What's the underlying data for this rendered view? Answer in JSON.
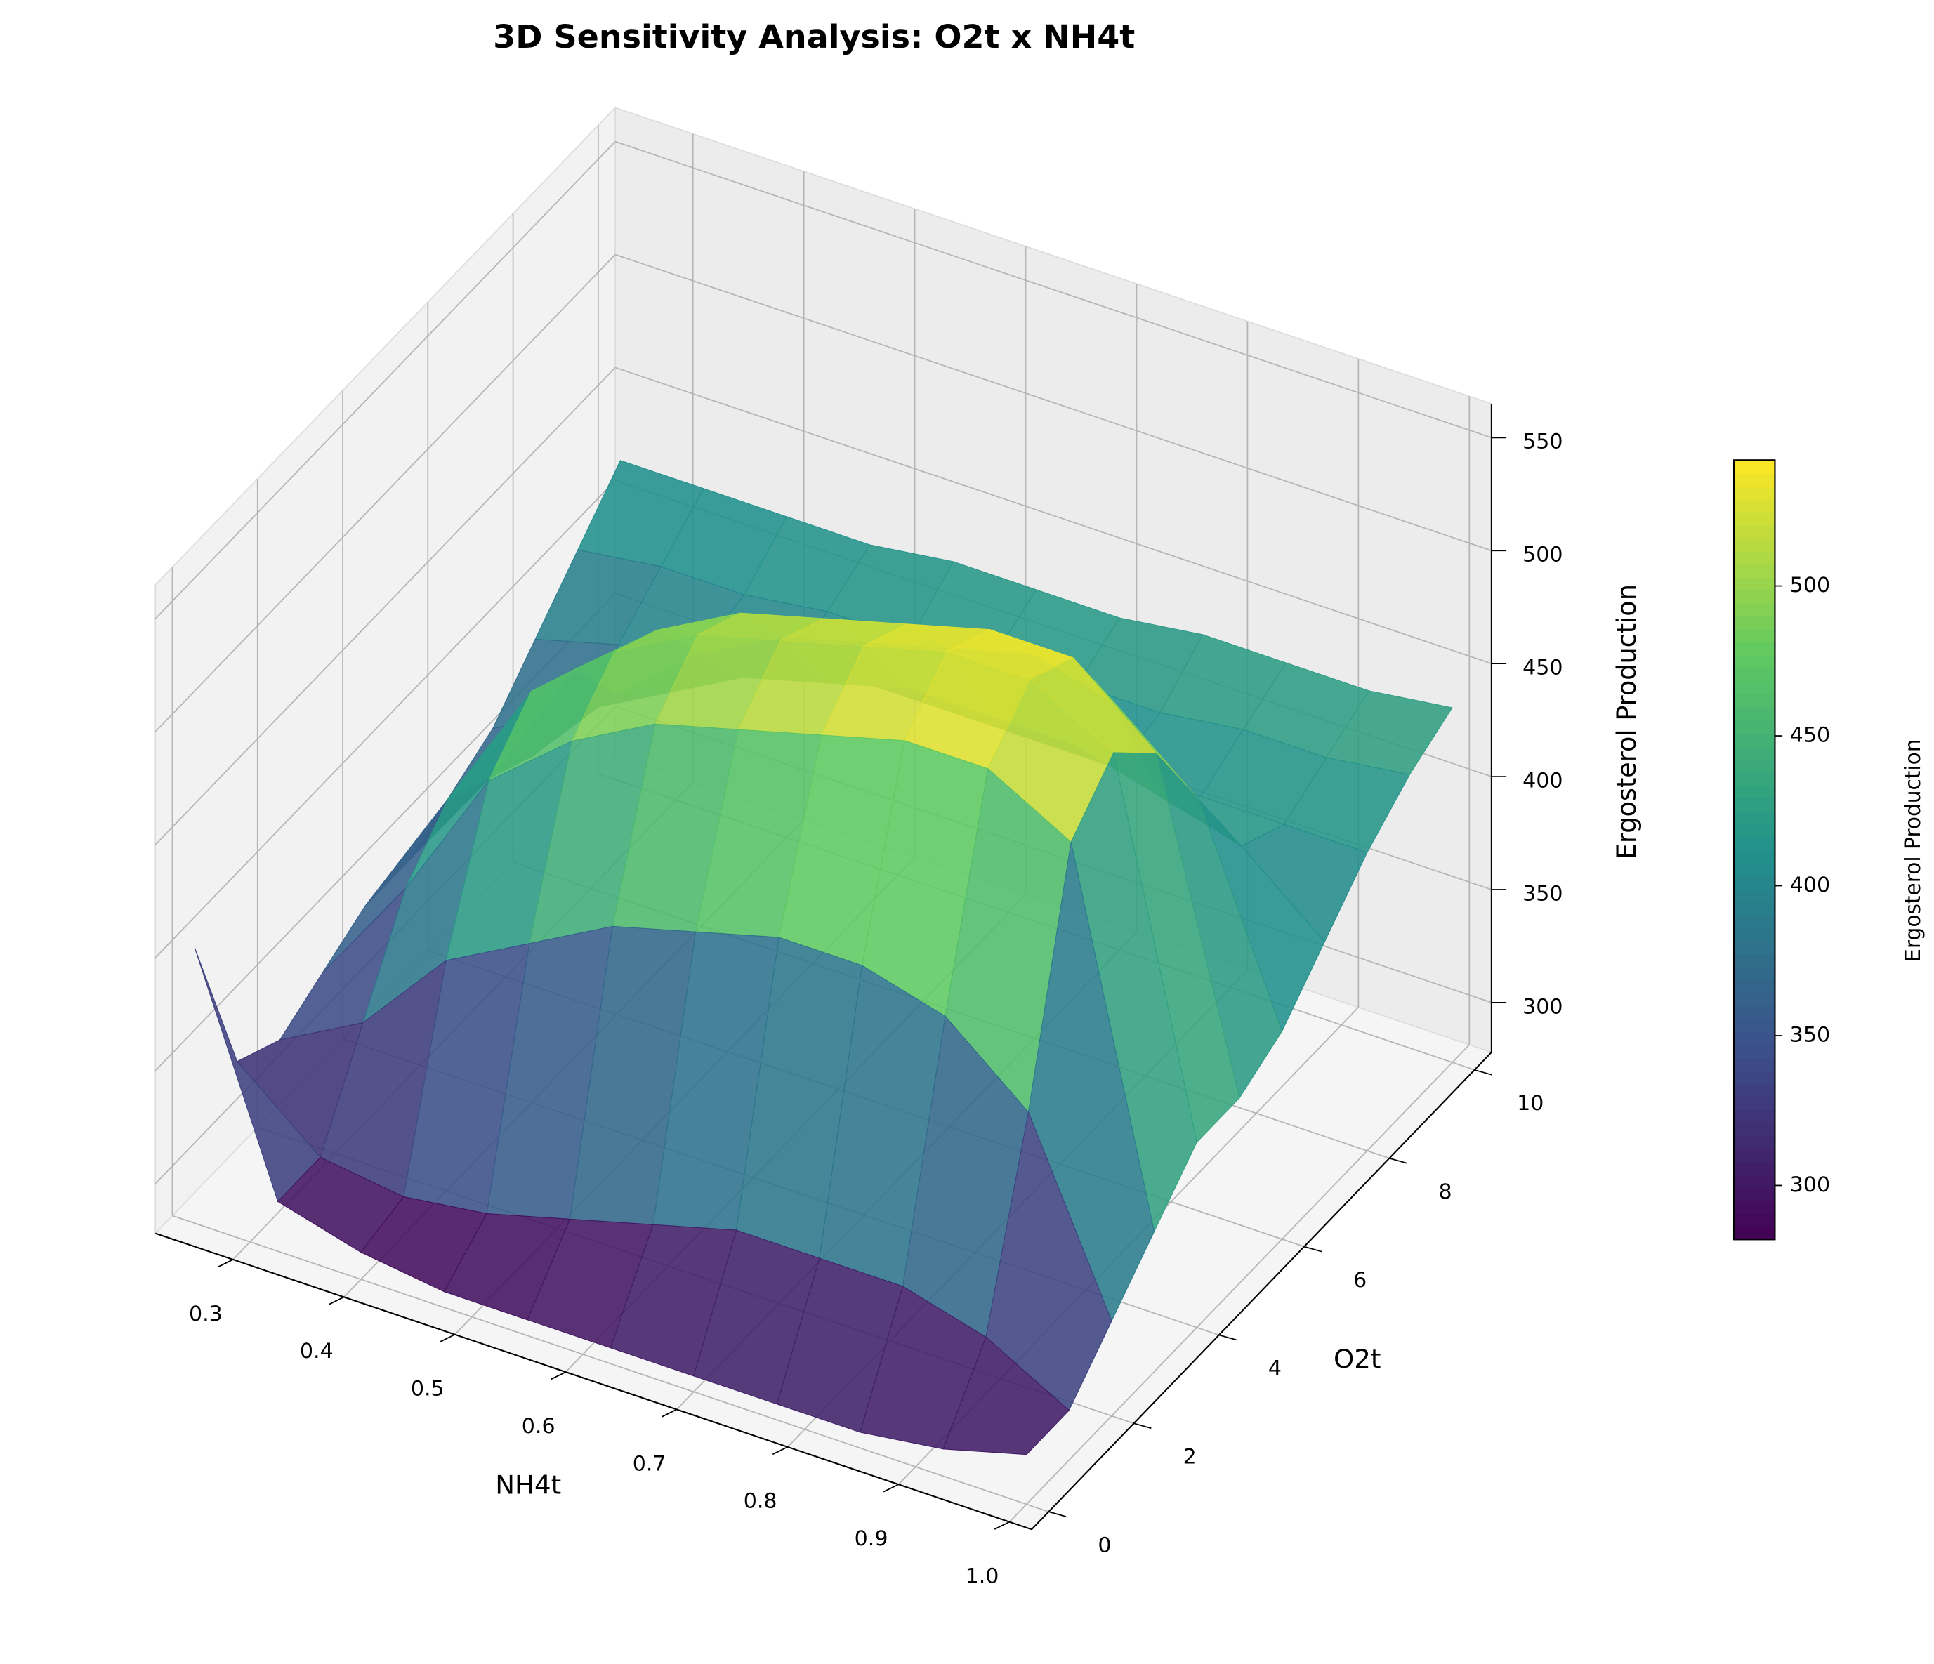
{
  "chart_data": {
    "type": "surface",
    "title": "3D Sensitivity Analysis: O2t x NH4t",
    "x_label": "NH4t",
    "y_label": "O2t",
    "z_label": "Ergosterol Production",
    "colorbar_label": "Ergosterol Production",
    "colormap": "viridis",
    "x": [
      0.25,
      0.325,
      0.4,
      0.475,
      0.55,
      0.625,
      0.7,
      0.775,
      0.85,
      0.925,
      1.0
    ],
    "y": [
      0,
      1,
      2,
      3,
      4,
      5,
      6,
      7,
      8,
      9,
      10
    ],
    "z": [
      [
        400,
        300,
        290,
        285,
        285,
        285,
        285,
        285,
        285,
        290,
        300
      ],
      [
        330,
        300,
        295,
        300,
        310,
        320,
        330,
        330,
        330,
        320,
        300
      ],
      [
        320,
        340,
        380,
        400,
        420,
        430,
        440,
        440,
        430,
        400,
        320
      ],
      [
        330,
        380,
        440,
        470,
        490,
        500,
        510,
        520,
        520,
        500,
        340
      ],
      [
        340,
        400,
        460,
        490,
        510,
        520,
        530,
        540,
        540,
        520,
        360
      ],
      [
        340,
        390,
        450,
        480,
        500,
        510,
        520,
        530,
        530,
        500,
        360
      ],
      [
        350,
        380,
        420,
        450,
        470,
        480,
        490,
        500,
        490,
        460,
        370
      ],
      [
        360,
        380,
        400,
        420,
        430,
        440,
        440,
        440,
        430,
        420,
        390
      ],
      [
        380,
        390,
        400,
        400,
        410,
        410,
        410,
        410,
        410,
        410,
        410
      ],
      [
        400,
        405,
        405,
        410,
        410,
        415,
        415,
        415,
        420,
        420,
        425
      ],
      [
        420,
        420,
        420,
        420,
        425,
        425,
        425,
        430,
        430,
        430,
        435
      ]
    ],
    "xlim": [
      0.23,
      1.02
    ],
    "ylim": [
      -0.4,
      10.4
    ],
    "zlim": [
      278,
      565
    ],
    "xticks": [
      0.3,
      0.4,
      0.5,
      0.6,
      0.7,
      0.8,
      0.9,
      {
        "value": 1.0,
        "label": "1.0"
      }
    ],
    "yticks": [
      0,
      2,
      4,
      6,
      8,
      10
    ],
    "zticks": [
      300,
      350,
      400,
      450,
      500,
      550
    ],
    "clim": [
      282,
      542
    ],
    "cbar_ticks": [
      300,
      350,
      400,
      450,
      500
    ],
    "grid": true
  }
}
